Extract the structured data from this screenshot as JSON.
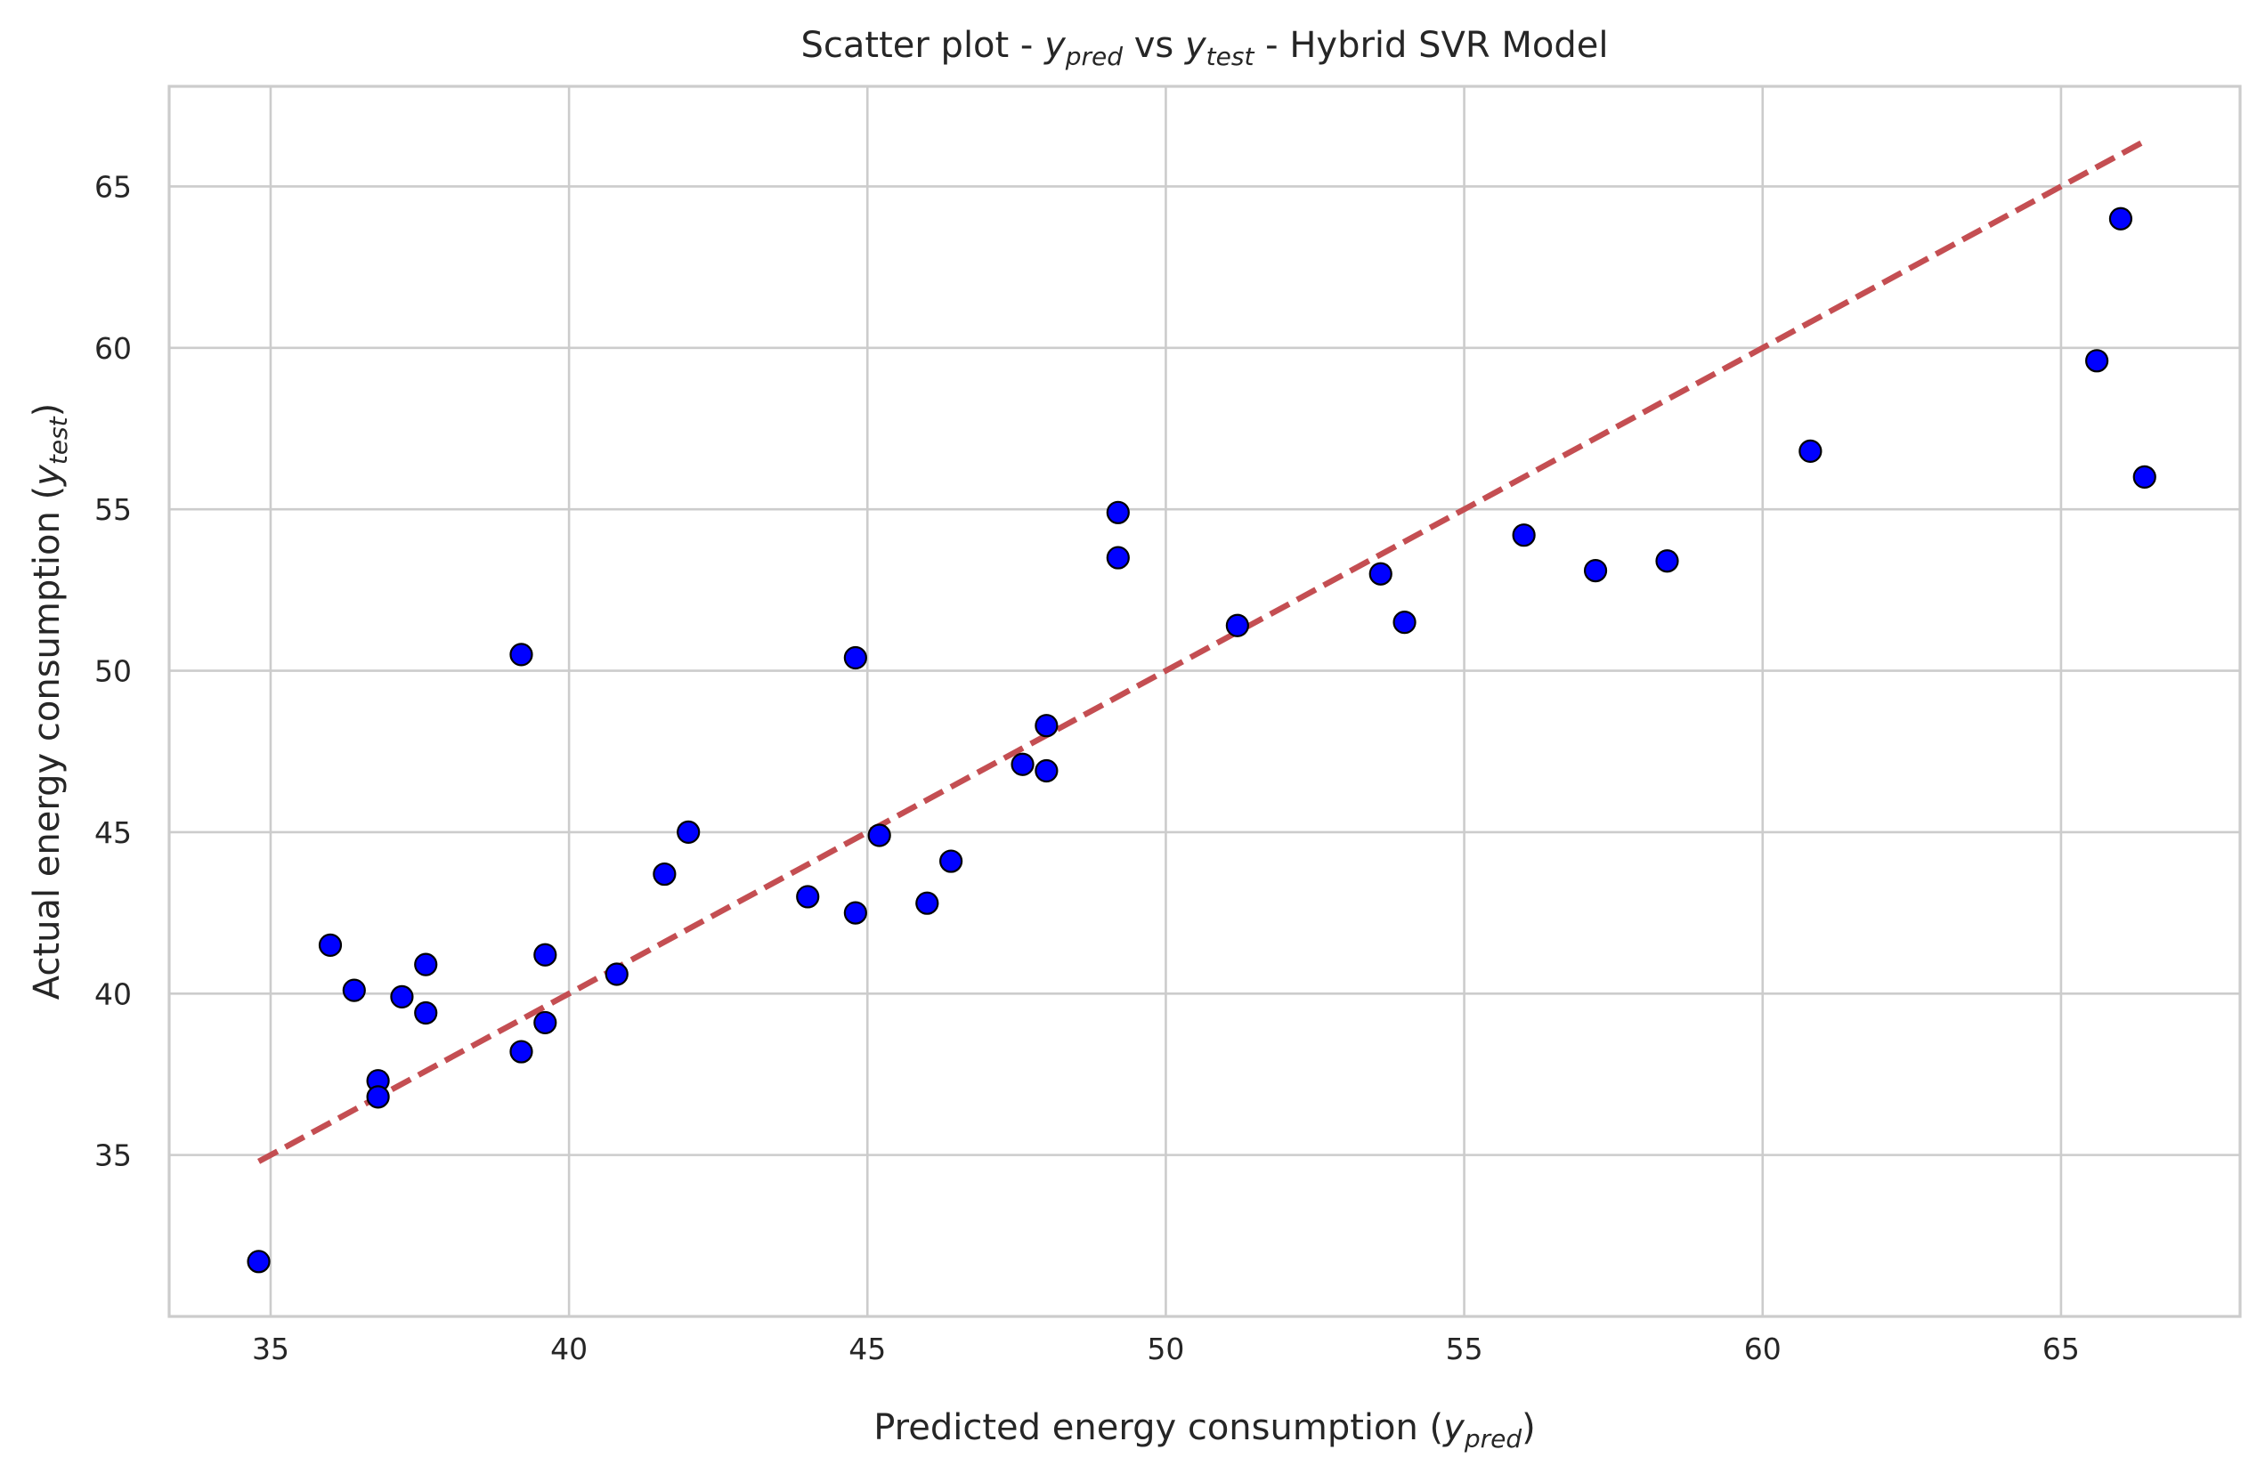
{
  "chart_data": {
    "type": "scatter",
    "title": {
      "prefix": "Scatter plot - ",
      "v1_base": "y",
      "v1_sub": "pred",
      "mid": " vs ",
      "v2_base": "y",
      "v2_sub": "test",
      "suffix": " - Hybrid SVR Model"
    },
    "xlabel": {
      "text": "Predicted energy consumption (",
      "var_base": "y",
      "var_sub": "pred",
      "close": ")"
    },
    "ylabel": {
      "text": "Actual energy consumption (",
      "var_base": "y",
      "var_sub": "test",
      "close": ")"
    },
    "xlim": [
      33.3,
      68.0
    ],
    "ylim": [
      30.0,
      68.1
    ],
    "xticks": [
      35,
      40,
      45,
      50,
      55,
      60,
      65
    ],
    "yticks": [
      35,
      40,
      45,
      50,
      55,
      60,
      65
    ],
    "grid": true,
    "points": {
      "color": "#0000ff",
      "edge_color": "#000000",
      "x": [
        34.8,
        36.0,
        36.4,
        36.8,
        36.8,
        37.2,
        37.6,
        37.6,
        39.2,
        39.2,
        39.6,
        39.6,
        40.8,
        41.6,
        42.0,
        44.0,
        44.8,
        44.8,
        45.2,
        46.0,
        46.4,
        47.6,
        48.0,
        48.0,
        49.2,
        49.2,
        51.2,
        53.6,
        54.0,
        56.0,
        57.2,
        58.4,
        60.8,
        65.6,
        66.0,
        66.4
      ],
      "y": [
        31.7,
        41.5,
        40.1,
        37.3,
        36.8,
        39.9,
        40.9,
        39.4,
        50.5,
        38.2,
        41.2,
        39.1,
        40.6,
        43.7,
        45.0,
        43.0,
        50.4,
        42.5,
        44.9,
        42.8,
        44.1,
        47.1,
        46.9,
        48.3,
        54.9,
        53.5,
        51.4,
        53.0,
        51.5,
        54.2,
        53.1,
        53.4,
        56.8,
        59.6,
        64.0,
        56.0
      ]
    },
    "reference_line": {
      "color": "#c44e52",
      "style": "dashed",
      "x": [
        34.8,
        66.4
      ],
      "y": [
        34.8,
        66.4
      ]
    }
  }
}
